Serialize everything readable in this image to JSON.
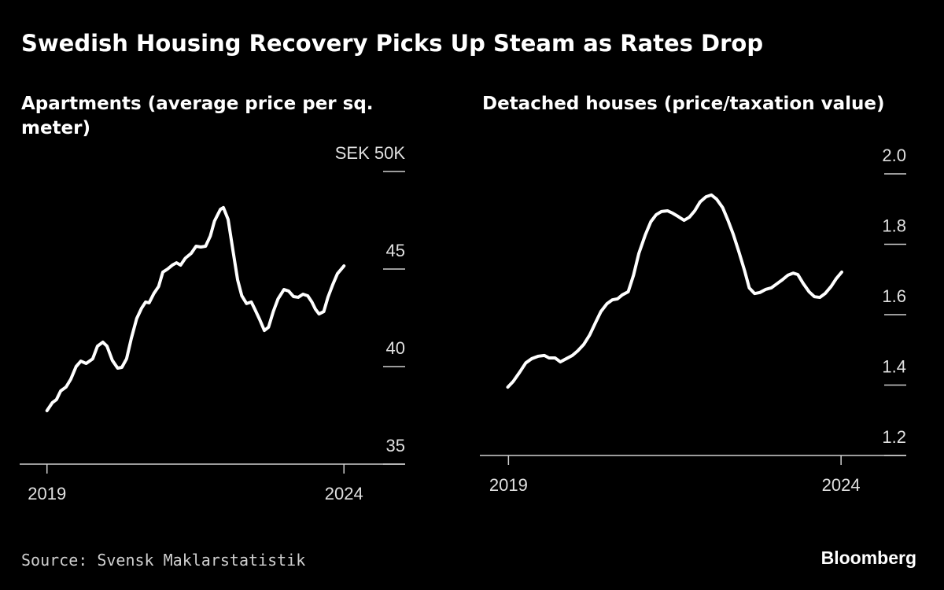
{
  "title": "Swedish Housing Recovery Picks Up Steam as Rates Drop",
  "source": "Source: Svensk Maklarstatistik",
  "brand": "Bloomberg",
  "chart_data": [
    {
      "type": "line",
      "title": "Apartments (average price per sq. meter)",
      "color": "#ffffff",
      "xlim": [
        2018.54,
        2025.03
      ],
      "xticks": [
        2019,
        2024
      ],
      "ylim": [
        35,
        50
      ],
      "yticks": [
        35,
        40,
        45,
        {
          "value": 50,
          "label": "SEK 50K"
        }
      ],
      "x": [
        2019.0,
        2019.09,
        2019.16,
        2019.23,
        2019.32,
        2019.4,
        2019.49,
        2019.57,
        2019.66,
        2019.77,
        2019.85,
        2019.94,
        2020.01,
        2020.1,
        2020.19,
        2020.26,
        2020.34,
        2020.42,
        2020.51,
        2020.59,
        2020.66,
        2020.72,
        2020.8,
        2020.88,
        2020.95,
        2021.03,
        2021.11,
        2021.18,
        2021.25,
        2021.33,
        2021.43,
        2021.51,
        2021.59,
        2021.67,
        2021.75,
        2021.82,
        2021.92,
        2021.97,
        2022.05,
        2022.13,
        2022.21,
        2022.28,
        2022.36,
        2022.44,
        2022.5,
        2022.58,
        2022.66,
        2022.73,
        2022.81,
        2022.89,
        2022.99,
        2023.07,
        2023.15,
        2023.23,
        2023.31,
        2023.39,
        2023.46,
        2023.52,
        2023.58,
        2023.66,
        2023.73,
        2023.81,
        2023.89,
        2024.0
      ],
      "values": [
        37.74,
        38.15,
        38.31,
        38.75,
        38.95,
        39.35,
        40.0,
        40.28,
        40.16,
        40.4,
        41.05,
        41.25,
        41.05,
        40.32,
        39.92,
        39.96,
        40.4,
        41.45,
        42.46,
        42.98,
        43.31,
        43.27,
        43.75,
        44.11,
        44.84,
        45.0,
        45.2,
        45.32,
        45.2,
        45.56,
        45.81,
        46.17,
        46.13,
        46.17,
        46.69,
        47.46,
        48.06,
        48.15,
        47.54,
        45.97,
        44.44,
        43.63,
        43.23,
        43.31,
        42.94,
        42.42,
        41.85,
        42.02,
        42.82,
        43.47,
        43.95,
        43.87,
        43.59,
        43.55,
        43.71,
        43.63,
        43.31,
        42.94,
        42.7,
        42.82,
        43.55,
        44.19,
        44.76,
        45.16
      ]
    },
    {
      "type": "line",
      "title": "Detached houses (price/taxation value)",
      "color": "#ffffff",
      "xlim": [
        2018.57,
        2024.98
      ],
      "xticks": [
        2019,
        2024
      ],
      "ylim": [
        1.2,
        2.0
      ],
      "yticks": [
        1.2,
        1.4,
        1.6,
        1.8,
        {
          "value": 2.0,
          "label": "2.0"
        }
      ],
      "x": [
        2018.99,
        2019.07,
        2019.17,
        2019.26,
        2019.35,
        2019.45,
        2019.54,
        2019.61,
        2019.7,
        2019.78,
        2019.87,
        2019.96,
        2020.04,
        2020.13,
        2020.22,
        2020.31,
        2020.39,
        2020.48,
        2020.56,
        2020.64,
        2020.71,
        2020.8,
        2020.88,
        2020.96,
        2021.06,
        2021.14,
        2021.22,
        2021.3,
        2021.39,
        2021.47,
        2021.55,
        2021.64,
        2021.72,
        2021.8,
        2021.88,
        2021.97,
        2022.05,
        2022.13,
        2022.22,
        2022.3,
        2022.38,
        2022.46,
        2022.55,
        2022.62,
        2022.7,
        2022.78,
        2022.87,
        2022.95,
        2023.03,
        2023.11,
        2023.2,
        2023.28,
        2023.35,
        2023.43,
        2023.52,
        2023.6,
        2023.68,
        2023.76,
        2023.85,
        2023.93,
        2024.01
      ],
      "values": [
        1.394,
        1.41,
        1.437,
        1.463,
        1.475,
        1.482,
        1.484,
        1.477,
        1.477,
        1.466,
        1.475,
        1.484,
        1.497,
        1.515,
        1.542,
        1.578,
        1.609,
        1.631,
        1.642,
        1.645,
        1.656,
        1.665,
        1.712,
        1.774,
        1.828,
        1.864,
        1.884,
        1.893,
        1.895,
        1.888,
        1.879,
        1.868,
        1.877,
        1.895,
        1.92,
        1.935,
        1.94,
        1.928,
        1.904,
        1.868,
        1.828,
        1.781,
        1.725,
        1.676,
        1.66,
        1.663,
        1.672,
        1.676,
        1.687,
        1.698,
        1.712,
        1.718,
        1.714,
        1.689,
        1.665,
        1.651,
        1.649,
        1.66,
        1.68,
        1.703,
        1.721
      ]
    }
  ]
}
